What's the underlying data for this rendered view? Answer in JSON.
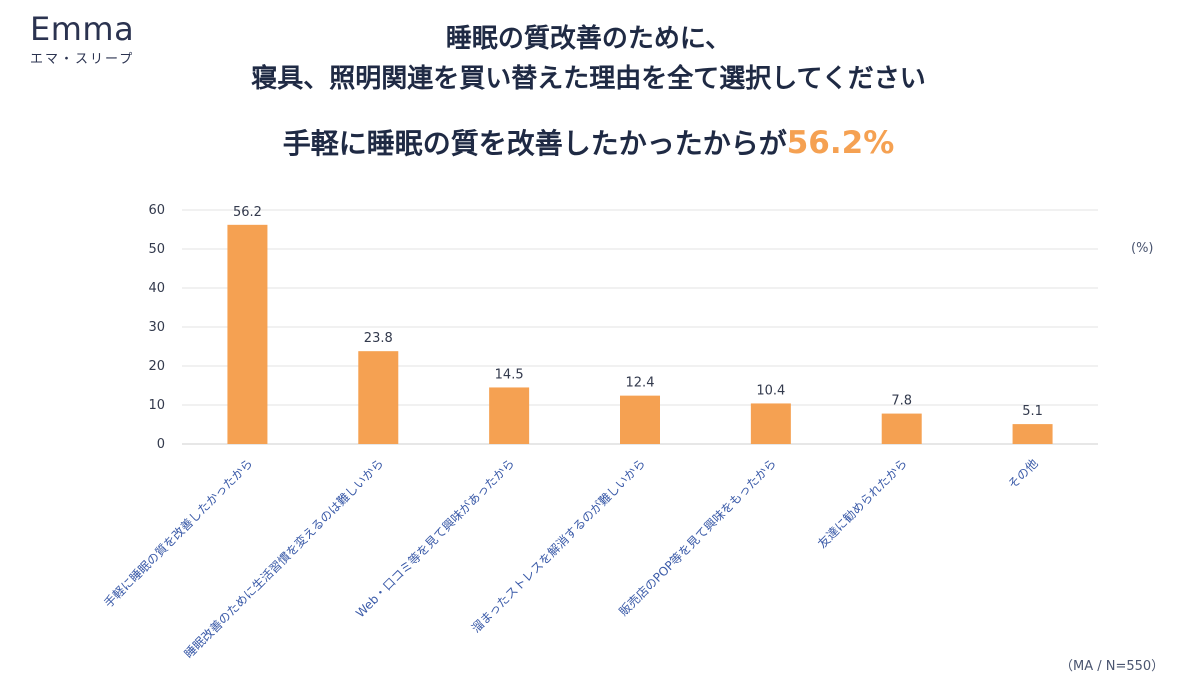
{
  "logo": {
    "name": "Emma",
    "sub": "エマ・スリープ"
  },
  "title_line1": "睡眠の質改善のために、",
  "title_line2": "寝具、照明関連を買い替えた理由を全て選択してください",
  "subtitle_text": "手軽に睡眠の質を改善したかったからが",
  "subtitle_highlight": "56.2%",
  "unit": "(%)",
  "footnote": "（MA / N=550）",
  "colors": {
    "bar": "#f5a152",
    "highlight": "#f5a152",
    "grid": "#e3e3e3"
  },
  "chart_data": {
    "type": "bar",
    "title": "睡眠の質改善のために、寝具、照明関連を買い替えた理由を全て選択してください",
    "xlabel": "",
    "ylabel": "(%)",
    "ylim": [
      0,
      60
    ],
    "yticks": [
      "0",
      "10",
      "20",
      "30",
      "40",
      "50",
      "60"
    ],
    "grid": true,
    "categories": [
      "手軽に睡眠の質を改善したかったから",
      "睡眠改善のために生活習慣を変えるのは難しいから",
      "Web・口コミ等を見て興味があったから",
      "溜まったストレスを解消するのが難しいから",
      "販売店のPOP等を見て興味をもったから",
      "友達に勧められたから",
      "その他"
    ],
    "values": [
      56.2,
      23.8,
      14.5,
      12.4,
      10.4,
      7.8,
      5.1
    ],
    "value_labels": [
      "56.2",
      "23.8",
      "14.5",
      "12.4",
      "10.4",
      "7.8",
      "5.1"
    ]
  }
}
